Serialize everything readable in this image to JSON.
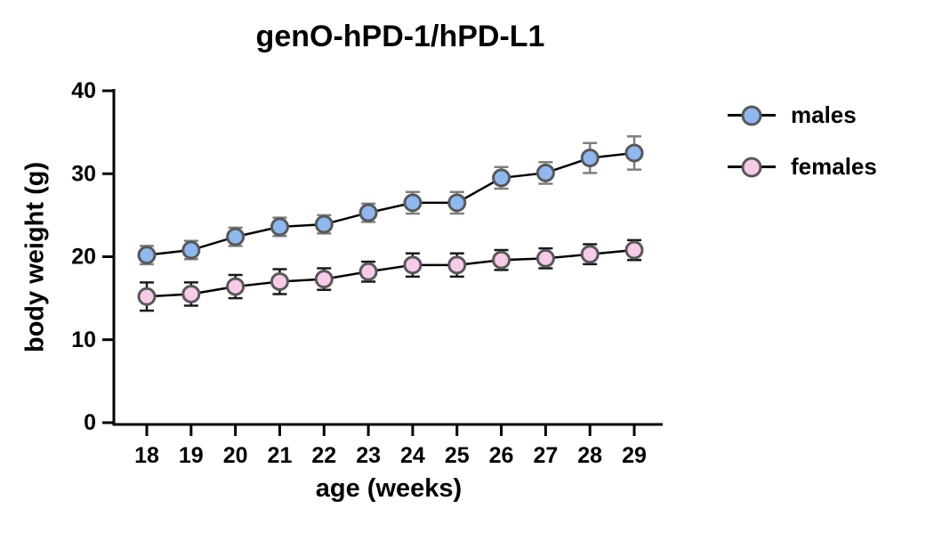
{
  "title": "genO-hPD-1/hPD-L1",
  "chart_data": {
    "type": "line",
    "title": "genO-hPD-1/hPD-L1",
    "xlabel": "age (weeks)",
    "ylabel": "body weight (g)",
    "x": [
      18,
      19,
      20,
      21,
      22,
      23,
      24,
      25,
      26,
      27,
      28,
      29
    ],
    "xlim": [
      17.25,
      29.65
    ],
    "ylim": [
      0,
      40
    ],
    "yticks": [
      0,
      10,
      20,
      30,
      40
    ],
    "grid": false,
    "legend_position": "right",
    "marker": "circle",
    "error_bars": true,
    "series": [
      {
        "name": "males",
        "color": "#8fb8ef",
        "outline_color": "#58585a",
        "line_color": "#000000",
        "error_color": "#7f7f7f",
        "values": [
          20.2,
          20.8,
          22.4,
          23.6,
          23.9,
          25.3,
          26.5,
          26.5,
          29.5,
          30.1,
          31.9,
          32.5
        ],
        "errors": [
          1.1,
          1.1,
          1.1,
          1.1,
          1.1,
          1.1,
          1.3,
          1.3,
          1.3,
          1.3,
          1.8,
          2.0
        ]
      },
      {
        "name": "females",
        "color": "#f7cbe8",
        "outline_color": "#58585a",
        "line_color": "#000000",
        "error_color": "#1a1a1a",
        "values": [
          15.2,
          15.5,
          16.4,
          17.0,
          17.3,
          18.2,
          19.0,
          19.0,
          19.6,
          19.8,
          20.3,
          20.8
        ],
        "errors": [
          1.7,
          1.4,
          1.4,
          1.5,
          1.3,
          1.2,
          1.4,
          1.4,
          1.2,
          1.2,
          1.2,
          1.2
        ]
      }
    ],
    "axis_color": "#000000",
    "background_color": "#ffffff"
  }
}
